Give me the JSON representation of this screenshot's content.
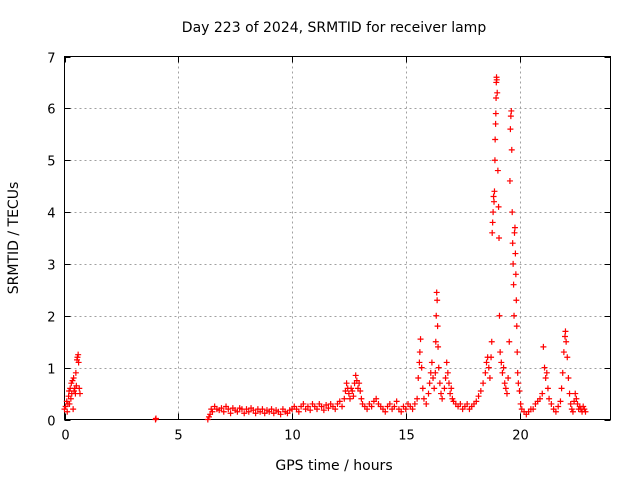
{
  "chart_data": {
    "type": "scatter",
    "title": "Day 223 of 2024, SRMTID for receiver lamp",
    "xlabel": "GPS time / hours",
    "ylabel": "SRMTID / TECUs",
    "xlim": [
      0,
      24
    ],
    "ylim": [
      0,
      7
    ],
    "xticks": [
      0,
      5,
      10,
      15,
      20
    ],
    "yticks": [
      0,
      1,
      2,
      3,
      4,
      5,
      6,
      7
    ],
    "grid": true,
    "marker": "+",
    "marker_color": "#ff0000",
    "series": [
      {
        "name": "SRMTID",
        "points": [
          [
            0.0,
            0.2
          ],
          [
            0.05,
            0.25
          ],
          [
            0.1,
            0.35
          ],
          [
            0.12,
            0.15
          ],
          [
            0.15,
            0.3
          ],
          [
            0.18,
            0.45
          ],
          [
            0.2,
            0.55
          ],
          [
            0.22,
            0.3
          ],
          [
            0.25,
            0.6
          ],
          [
            0.28,
            0.4
          ],
          [
            0.3,
            0.7
          ],
          [
            0.32,
            0.5
          ],
          [
            0.35,
            0.75
          ],
          [
            0.38,
            0.2
          ],
          [
            0.4,
            0.8
          ],
          [
            0.42,
            0.55
          ],
          [
            0.45,
            0.6
          ],
          [
            0.48,
            0.5
          ],
          [
            0.5,
            0.9
          ],
          [
            0.52,
            0.65
          ],
          [
            0.55,
            1.15
          ],
          [
            0.57,
            1.2
          ],
          [
            0.6,
            1.25
          ],
          [
            0.62,
            1.1
          ],
          [
            0.65,
            0.6
          ],
          [
            0.68,
            0.5
          ],
          [
            4.0,
            0.0
          ],
          [
            4.02,
            0.02
          ],
          [
            6.3,
            0.0
          ],
          [
            6.35,
            0.05
          ],
          [
            6.4,
            0.1
          ],
          [
            6.45,
            0.2
          ],
          [
            6.5,
            0.15
          ],
          [
            6.6,
            0.25
          ],
          [
            6.7,
            0.2
          ],
          [
            6.8,
            0.18
          ],
          [
            6.9,
            0.22
          ],
          [
            7.0,
            0.15
          ],
          [
            7.1,
            0.25
          ],
          [
            7.2,
            0.2
          ],
          [
            7.3,
            0.12
          ],
          [
            7.4,
            0.22
          ],
          [
            7.5,
            0.18
          ],
          [
            7.6,
            0.15
          ],
          [
            7.7,
            0.22
          ],
          [
            7.8,
            0.2
          ],
          [
            7.9,
            0.12
          ],
          [
            8.0,
            0.2
          ],
          [
            8.1,
            0.15
          ],
          [
            8.2,
            0.22
          ],
          [
            8.3,
            0.18
          ],
          [
            8.4,
            0.12
          ],
          [
            8.5,
            0.2
          ],
          [
            8.6,
            0.15
          ],
          [
            8.7,
            0.2
          ],
          [
            8.8,
            0.12
          ],
          [
            8.9,
            0.18
          ],
          [
            9.0,
            0.15
          ],
          [
            9.1,
            0.2
          ],
          [
            9.2,
            0.12
          ],
          [
            9.3,
            0.18
          ],
          [
            9.4,
            0.15
          ],
          [
            9.5,
            0.1
          ],
          [
            9.6,
            0.2
          ],
          [
            9.7,
            0.15
          ],
          [
            9.8,
            0.12
          ],
          [
            9.9,
            0.18
          ],
          [
            10.0,
            0.2
          ],
          [
            10.1,
            0.25
          ],
          [
            10.2,
            0.2
          ],
          [
            10.3,
            0.15
          ],
          [
            10.4,
            0.25
          ],
          [
            10.5,
            0.3
          ],
          [
            10.6,
            0.2
          ],
          [
            10.7,
            0.25
          ],
          [
            10.8,
            0.18
          ],
          [
            10.9,
            0.3
          ],
          [
            11.0,
            0.25
          ],
          [
            11.1,
            0.2
          ],
          [
            11.2,
            0.3
          ],
          [
            11.3,
            0.25
          ],
          [
            11.4,
            0.18
          ],
          [
            11.5,
            0.28
          ],
          [
            11.6,
            0.22
          ],
          [
            11.7,
            0.3
          ],
          [
            11.8,
            0.25
          ],
          [
            11.9,
            0.2
          ],
          [
            12.0,
            0.3
          ],
          [
            12.1,
            0.35
          ],
          [
            12.2,
            0.25
          ],
          [
            12.3,
            0.4
          ],
          [
            12.35,
            0.55
          ],
          [
            12.4,
            0.7
          ],
          [
            12.45,
            0.6
          ],
          [
            12.5,
            0.5
          ],
          [
            12.55,
            0.4
          ],
          [
            12.6,
            0.6
          ],
          [
            12.65,
            0.55
          ],
          [
            12.7,
            0.45
          ],
          [
            12.75,
            0.7
          ],
          [
            12.8,
            0.85
          ],
          [
            12.85,
            0.75
          ],
          [
            12.9,
            0.6
          ],
          [
            12.95,
            0.7
          ],
          [
            13.0,
            0.55
          ],
          [
            13.05,
            0.4
          ],
          [
            13.1,
            0.3
          ],
          [
            13.2,
            0.25
          ],
          [
            13.3,
            0.2
          ],
          [
            13.4,
            0.3
          ],
          [
            13.5,
            0.25
          ],
          [
            13.6,
            0.35
          ],
          [
            13.7,
            0.4
          ],
          [
            13.8,
            0.3
          ],
          [
            13.9,
            0.25
          ],
          [
            14.0,
            0.2
          ],
          [
            14.1,
            0.15
          ],
          [
            14.2,
            0.25
          ],
          [
            14.3,
            0.3
          ],
          [
            14.4,
            0.2
          ],
          [
            14.5,
            0.25
          ],
          [
            14.6,
            0.35
          ],
          [
            14.7,
            0.2
          ],
          [
            14.8,
            0.15
          ],
          [
            14.9,
            0.25
          ],
          [
            15.0,
            0.2
          ],
          [
            15.1,
            0.3
          ],
          [
            15.2,
            0.25
          ],
          [
            15.3,
            0.2
          ],
          [
            15.4,
            0.3
          ],
          [
            15.5,
            0.4
          ],
          [
            15.55,
            0.8
          ],
          [
            15.6,
            1.1
          ],
          [
            15.62,
            1.3
          ],
          [
            15.65,
            1.55
          ],
          [
            15.7,
            1.0
          ],
          [
            15.75,
            0.6
          ],
          [
            15.8,
            0.4
          ],
          [
            15.9,
            0.3
          ],
          [
            16.0,
            0.5
          ],
          [
            16.05,
            0.7
          ],
          [
            16.1,
            0.9
          ],
          [
            16.15,
            1.1
          ],
          [
            16.2,
            0.8
          ],
          [
            16.25,
            0.6
          ],
          [
            16.3,
            0.9
          ],
          [
            16.32,
            1.5
          ],
          [
            16.34,
            2.0
          ],
          [
            16.36,
            2.45
          ],
          [
            16.38,
            2.3
          ],
          [
            16.4,
            1.8
          ],
          [
            16.42,
            1.4
          ],
          [
            16.45,
            1.0
          ],
          [
            16.5,
            0.7
          ],
          [
            16.55,
            0.5
          ],
          [
            16.6,
            0.4
          ],
          [
            16.7,
            0.6
          ],
          [
            16.75,
            0.8
          ],
          [
            16.8,
            1.1
          ],
          [
            16.85,
            0.9
          ],
          [
            16.9,
            0.7
          ],
          [
            16.95,
            0.5
          ],
          [
            17.0,
            0.6
          ],
          [
            17.05,
            0.4
          ],
          [
            17.1,
            0.35
          ],
          [
            17.2,
            0.3
          ],
          [
            17.3,
            0.25
          ],
          [
            17.4,
            0.3
          ],
          [
            17.5,
            0.2
          ],
          [
            17.6,
            0.25
          ],
          [
            17.7,
            0.3
          ],
          [
            17.8,
            0.2
          ],
          [
            17.9,
            0.25
          ],
          [
            18.0,
            0.3
          ],
          [
            18.1,
            0.35
          ],
          [
            18.2,
            0.45
          ],
          [
            18.3,
            0.55
          ],
          [
            18.4,
            0.7
          ],
          [
            18.5,
            0.9
          ],
          [
            18.55,
            1.1
          ],
          [
            18.6,
            1.2
          ],
          [
            18.65,
            1.0
          ],
          [
            18.7,
            0.8
          ],
          [
            18.75,
            1.2
          ],
          [
            18.78,
            1.5
          ],
          [
            18.8,
            3.6
          ],
          [
            18.82,
            3.8
          ],
          [
            18.84,
            4.0
          ],
          [
            18.86,
            4.3
          ],
          [
            18.88,
            4.2
          ],
          [
            18.9,
            4.4
          ],
          [
            18.92,
            5.0
          ],
          [
            18.93,
            5.4
          ],
          [
            18.95,
            5.7
          ],
          [
            18.96,
            5.9
          ],
          [
            18.97,
            6.2
          ],
          [
            18.98,
            6.5
          ],
          [
            18.99,
            6.6
          ],
          [
            19.0,
            6.55
          ],
          [
            19.02,
            6.3
          ],
          [
            19.05,
            4.8
          ],
          [
            19.08,
            4.1
          ],
          [
            19.1,
            3.5
          ],
          [
            19.12,
            2.0
          ],
          [
            19.15,
            1.3
          ],
          [
            19.2,
            1.1
          ],
          [
            19.25,
            0.9
          ],
          [
            19.3,
            1.0
          ],
          [
            19.35,
            0.7
          ],
          [
            19.4,
            0.6
          ],
          [
            19.45,
            0.5
          ],
          [
            19.5,
            0.8
          ],
          [
            19.55,
            1.5
          ],
          [
            19.58,
            4.6
          ],
          [
            19.6,
            5.6
          ],
          [
            19.62,
            5.85
          ],
          [
            19.64,
            5.95
          ],
          [
            19.66,
            5.2
          ],
          [
            19.68,
            4.0
          ],
          [
            19.7,
            3.4
          ],
          [
            19.72,
            3.0
          ],
          [
            19.74,
            2.6
          ],
          [
            19.76,
            2.0
          ],
          [
            19.78,
            3.6
          ],
          [
            19.8,
            3.7
          ],
          [
            19.82,
            3.2
          ],
          [
            19.84,
            2.8
          ],
          [
            19.86,
            2.3
          ],
          [
            19.88,
            1.8
          ],
          [
            19.9,
            1.3
          ],
          [
            19.92,
            0.9
          ],
          [
            19.95,
            0.7
          ],
          [
            20.0,
            0.55
          ],
          [
            20.05,
            0.3
          ],
          [
            20.1,
            0.2
          ],
          [
            20.2,
            0.15
          ],
          [
            20.3,
            0.1
          ],
          [
            20.4,
            0.15
          ],
          [
            20.5,
            0.2
          ],
          [
            20.6,
            0.2
          ],
          [
            20.7,
            0.3
          ],
          [
            20.8,
            0.35
          ],
          [
            20.9,
            0.4
          ],
          [
            21.0,
            0.5
          ],
          [
            21.05,
            1.4
          ],
          [
            21.1,
            1.0
          ],
          [
            21.15,
            0.8
          ],
          [
            21.2,
            0.9
          ],
          [
            21.25,
            0.6
          ],
          [
            21.3,
            0.4
          ],
          [
            21.4,
            0.3
          ],
          [
            21.5,
            0.2
          ],
          [
            21.6,
            0.15
          ],
          [
            21.7,
            0.25
          ],
          [
            21.8,
            0.35
          ],
          [
            21.85,
            0.6
          ],
          [
            21.9,
            0.9
          ],
          [
            21.95,
            1.3
          ],
          [
            22.0,
            1.6
          ],
          [
            22.02,
            1.7
          ],
          [
            22.05,
            1.5
          ],
          [
            22.1,
            1.2
          ],
          [
            22.15,
            0.8
          ],
          [
            22.2,
            0.5
          ],
          [
            22.25,
            0.3
          ],
          [
            22.3,
            0.2
          ],
          [
            22.35,
            0.15
          ],
          [
            22.4,
            0.35
          ],
          [
            22.45,
            0.5
          ],
          [
            22.5,
            0.4
          ],
          [
            22.55,
            0.3
          ],
          [
            22.6,
            0.2
          ],
          [
            22.65,
            0.25
          ],
          [
            22.7,
            0.2
          ],
          [
            22.75,
            0.15
          ],
          [
            22.8,
            0.25
          ],
          [
            22.85,
            0.2
          ],
          [
            22.9,
            0.15
          ]
        ]
      }
    ]
  }
}
